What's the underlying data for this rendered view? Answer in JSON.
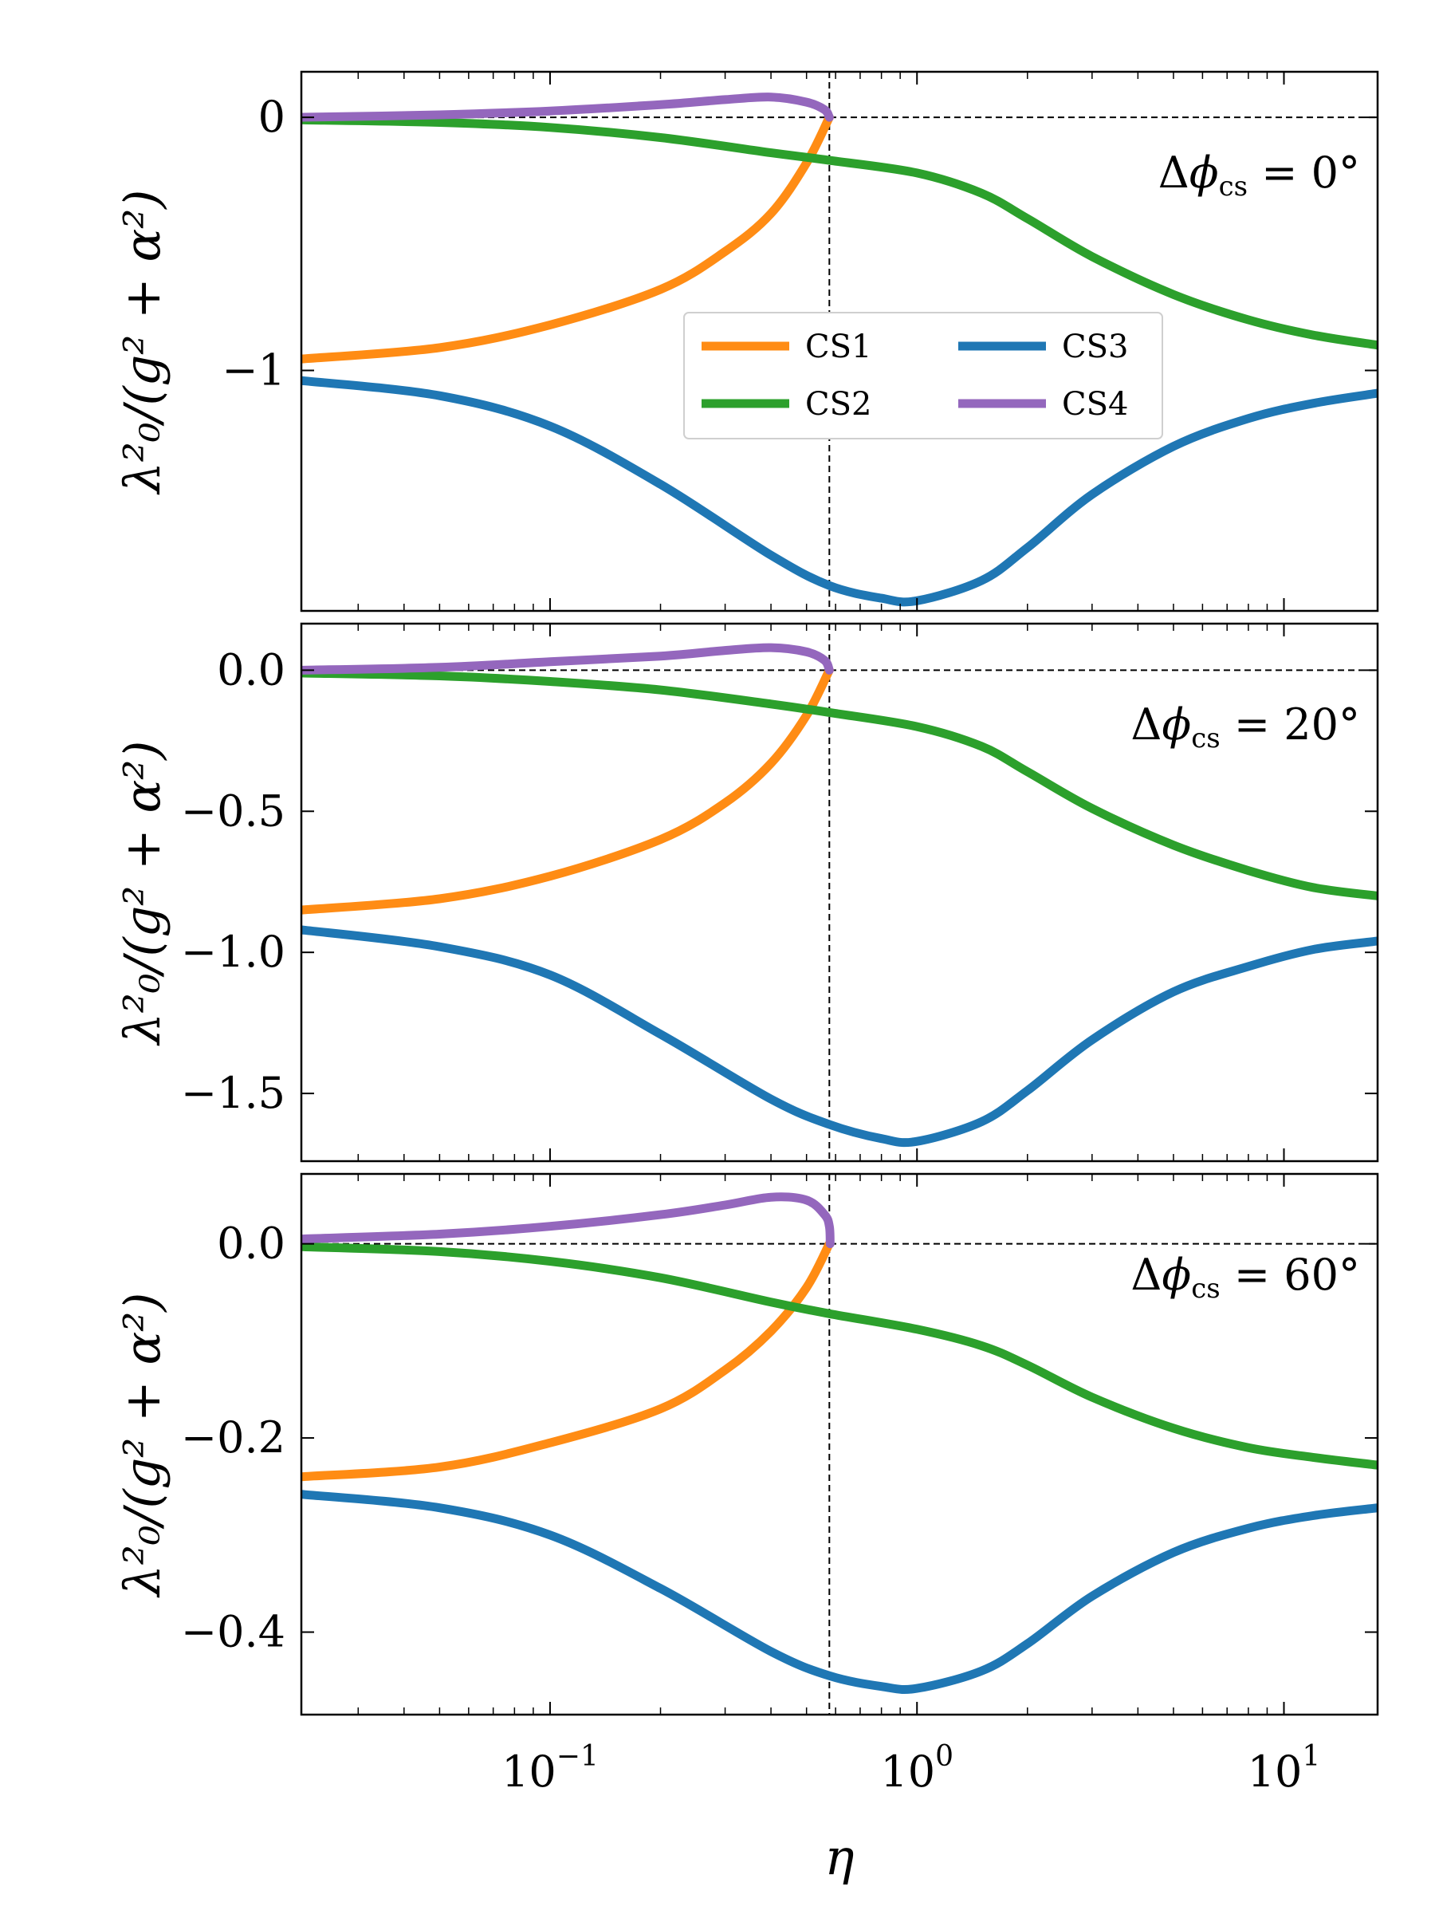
{
  "chart_data": {
    "type": "line",
    "xscale": "log",
    "xlim": [
      0.021,
      18
    ],
    "xlabel": "η",
    "x_ticks": [
      {
        "value": 0.1,
        "base": "10",
        "exp": "−1"
      },
      {
        "value": 1,
        "base": "10",
        "exp": "0"
      },
      {
        "value": 10,
        "base": "10",
        "exp": "1"
      }
    ],
    "vertical_ref_x": 0.577,
    "horizontal_ref_y": 0,
    "colors": {
      "CS1": "#ff8c14",
      "CS2": "#2ca02c",
      "CS3": "#1f77b4",
      "CS4": "#9467bd"
    },
    "legend": {
      "position": "center-right",
      "entries": [
        "CS1",
        "CS2",
        "CS3",
        "CS4"
      ]
    },
    "panels": [
      {
        "annotation": {
          "prefix": "Δ",
          "phi": "ϕ",
          "sub": "cs",
          "value": " = 0°"
        },
        "ylabel": "λ²₀/(g² + α²)",
        "ylim": [
          -1.95,
          0.18
        ],
        "yticks": [
          {
            "value": 0,
            "label": "0"
          },
          {
            "value": -1,
            "label": "−1"
          }
        ],
        "series": [
          {
            "name": "CS1",
            "points": [
              [
                0.021,
                -0.955
              ],
              [
                0.05,
                -0.91
              ],
              [
                0.1,
                -0.82
              ],
              [
                0.2,
                -0.68
              ],
              [
                0.3,
                -0.53
              ],
              [
                0.4,
                -0.38
              ],
              [
                0.5,
                -0.18
              ],
              [
                0.577,
                0.0
              ]
            ]
          },
          {
            "name": "CS2",
            "points": [
              [
                0.021,
                -0.01
              ],
              [
                0.05,
                -0.02
              ],
              [
                0.1,
                -0.04
              ],
              [
                0.2,
                -0.08
              ],
              [
                0.4,
                -0.14
              ],
              [
                0.577,
                -0.17
              ],
              [
                1,
                -0.22
              ],
              [
                1.5,
                -0.3
              ],
              [
                2,
                -0.4
              ],
              [
                3,
                -0.55
              ],
              [
                5,
                -0.7
              ],
              [
                8,
                -0.8
              ],
              [
                12,
                -0.86
              ],
              [
                18,
                -0.9
              ]
            ]
          },
          {
            "name": "CS3",
            "points": [
              [
                0.021,
                -1.04
              ],
              [
                0.05,
                -1.1
              ],
              [
                0.1,
                -1.22
              ],
              [
                0.2,
                -1.45
              ],
              [
                0.4,
                -1.73
              ],
              [
                0.577,
                -1.85
              ],
              [
                0.8,
                -1.9
              ],
              [
                1,
                -1.91
              ],
              [
                1.5,
                -1.83
              ],
              [
                2,
                -1.7
              ],
              [
                3,
                -1.49
              ],
              [
                5,
                -1.3
              ],
              [
                8,
                -1.19
              ],
              [
                12,
                -1.13
              ],
              [
                18,
                -1.09
              ]
            ]
          },
          {
            "name": "CS4",
            "points": [
              [
                0.021,
                0.0
              ],
              [
                0.05,
                0.01
              ],
              [
                0.1,
                0.025
              ],
              [
                0.2,
                0.05
              ],
              [
                0.3,
                0.07
              ],
              [
                0.4,
                0.08
              ],
              [
                0.5,
                0.06
              ],
              [
                0.56,
                0.03
              ],
              [
                0.577,
                0.0
              ]
            ]
          }
        ]
      },
      {
        "annotation": {
          "prefix": "Δ",
          "phi": "ϕ",
          "sub": "cs",
          "value": " = 20°"
        },
        "ylabel": "λ²₀/(g² + α²)",
        "ylim": [
          -1.74,
          0.165
        ],
        "yticks": [
          {
            "value": 0,
            "label": "0.0"
          },
          {
            "value": -0.5,
            "label": "−0.5"
          },
          {
            "value": -1,
            "label": "−1.0"
          },
          {
            "value": -1.5,
            "label": "−1.5"
          }
        ],
        "series": [
          {
            "name": "CS1",
            "points": [
              [
                0.021,
                -0.85
              ],
              [
                0.05,
                -0.81
              ],
              [
                0.1,
                -0.73
              ],
              [
                0.2,
                -0.6
              ],
              [
                0.3,
                -0.47
              ],
              [
                0.4,
                -0.33
              ],
              [
                0.5,
                -0.16
              ],
              [
                0.577,
                0.0
              ]
            ]
          },
          {
            "name": "CS2",
            "points": [
              [
                0.021,
                -0.01
              ],
              [
                0.05,
                -0.02
              ],
              [
                0.1,
                -0.04
              ],
              [
                0.2,
                -0.07
              ],
              [
                0.4,
                -0.12
              ],
              [
                0.577,
                -0.15
              ],
              [
                1,
                -0.2
              ],
              [
                1.5,
                -0.27
              ],
              [
                2,
                -0.36
              ],
              [
                3,
                -0.49
              ],
              [
                5,
                -0.62
              ],
              [
                8,
                -0.71
              ],
              [
                12,
                -0.77
              ],
              [
                18,
                -0.8
              ]
            ]
          },
          {
            "name": "CS3",
            "points": [
              [
                0.021,
                -0.92
              ],
              [
                0.05,
                -0.98
              ],
              [
                0.1,
                -1.08
              ],
              [
                0.2,
                -1.29
              ],
              [
                0.4,
                -1.52
              ],
              [
                0.577,
                -1.61
              ],
              [
                0.8,
                -1.66
              ],
              [
                1,
                -1.67
              ],
              [
                1.5,
                -1.6
              ],
              [
                2,
                -1.49
              ],
              [
                3,
                -1.31
              ],
              [
                5,
                -1.14
              ],
              [
                8,
                -1.05
              ],
              [
                12,
                -0.99
              ],
              [
                18,
                -0.96
              ]
            ]
          },
          {
            "name": "CS4",
            "points": [
              [
                0.021,
                0.0
              ],
              [
                0.05,
                0.01
              ],
              [
                0.1,
                0.03
              ],
              [
                0.2,
                0.05
              ],
              [
                0.3,
                0.07
              ],
              [
                0.4,
                0.08
              ],
              [
                0.5,
                0.065
              ],
              [
                0.56,
                0.035
              ],
              [
                0.577,
                0.0
              ]
            ]
          }
        ]
      },
      {
        "annotation": {
          "prefix": "Δ",
          "phi": "ϕ",
          "sub": "cs",
          "value": " = 60°"
        },
        "ylabel": "λ²₀/(g² + α²)",
        "ylim": [
          -0.485,
          0.072
        ],
        "yticks": [
          {
            "value": 0,
            "label": "0.0"
          },
          {
            "value": -0.2,
            "label": "−0.2"
          },
          {
            "value": -0.4,
            "label": "−0.4"
          }
        ],
        "series": [
          {
            "name": "CS1",
            "points": [
              [
                0.021,
                -0.24
              ],
              [
                0.05,
                -0.23
              ],
              [
                0.1,
                -0.205
              ],
              [
                0.2,
                -0.17
              ],
              [
                0.3,
                -0.13
              ],
              [
                0.4,
                -0.09
              ],
              [
                0.5,
                -0.045
              ],
              [
                0.577,
                0.0
              ]
            ]
          },
          {
            "name": "CS2",
            "points": [
              [
                0.021,
                -0.003
              ],
              [
                0.05,
                -0.008
              ],
              [
                0.1,
                -0.018
              ],
              [
                0.2,
                -0.035
              ],
              [
                0.4,
                -0.06
              ],
              [
                0.577,
                -0.072
              ],
              [
                1,
                -0.088
              ],
              [
                1.5,
                -0.105
              ],
              [
                2,
                -0.125
              ],
              [
                3,
                -0.158
              ],
              [
                5,
                -0.19
              ],
              [
                8,
                -0.21
              ],
              [
                12,
                -0.22
              ],
              [
                18,
                -0.228
              ]
            ]
          },
          {
            "name": "CS3",
            "points": [
              [
                0.021,
                -0.258
              ],
              [
                0.05,
                -0.272
              ],
              [
                0.1,
                -0.3
              ],
              [
                0.2,
                -0.355
              ],
              [
                0.4,
                -0.42
              ],
              [
                0.577,
                -0.445
              ],
              [
                0.8,
                -0.456
              ],
              [
                1,
                -0.458
              ],
              [
                1.5,
                -0.44
              ],
              [
                2,
                -0.412
              ],
              [
                3,
                -0.363
              ],
              [
                5,
                -0.318
              ],
              [
                8,
                -0.293
              ],
              [
                12,
                -0.28
              ],
              [
                18,
                -0.272
              ]
            ]
          },
          {
            "name": "CS4",
            "points": [
              [
                0.021,
                0.005
              ],
              [
                0.05,
                0.01
              ],
              [
                0.1,
                0.018
              ],
              [
                0.2,
                0.03
              ],
              [
                0.3,
                0.04
              ],
              [
                0.4,
                0.048
              ],
              [
                0.5,
                0.045
              ],
              [
                0.56,
                0.03
              ],
              [
                0.577,
                0.018
              ],
              [
                0.58,
                0.0
              ]
            ]
          }
        ]
      }
    ]
  }
}
